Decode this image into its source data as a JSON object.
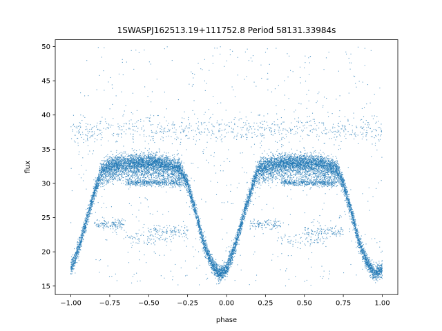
{
  "chart_data": {
    "type": "scatter",
    "title": "1SWASPJ162513.19+111752.8 Period 58131.33984s",
    "xlabel": "phase",
    "ylabel": "flux",
    "xlim": [
      -1.1,
      1.1
    ],
    "ylim": [
      13.75,
      51.0
    ],
    "xticks": [
      -1.0,
      -0.75,
      -0.5,
      -0.25,
      0.0,
      0.25,
      0.5,
      0.75,
      1.0
    ],
    "xtick_labels": [
      "−1.00",
      "−0.75",
      "−0.50",
      "−0.25",
      "0.00",
      "0.25",
      "0.50",
      "0.75",
      "1.00"
    ],
    "yticks": [
      15,
      20,
      25,
      30,
      35,
      40,
      45,
      50
    ],
    "ytick_labels": [
      "15",
      "20",
      "25",
      "30",
      "35",
      "40",
      "45",
      "50"
    ],
    "grid": false,
    "marker_color": "#1f77b4",
    "series": [
      {
        "values": [
          {
            "x": -1.0,
            "y": 17.5
          },
          {
            "x": -0.95,
            "y": 20.5
          },
          {
            "x": -0.9,
            "y": 24.5
          },
          {
            "x": -0.85,
            "y": 28.5
          },
          {
            "x": -0.8,
            "y": 32.0
          },
          {
            "x": -0.75,
            "y": 32.5
          },
          {
            "x": -0.7,
            "y": 32.8
          },
          {
            "x": -0.6,
            "y": 33.0
          },
          {
            "x": -0.5,
            "y": 33.0
          },
          {
            "x": -0.4,
            "y": 32.8
          },
          {
            "x": -0.3,
            "y": 32.2
          },
          {
            "x": -0.25,
            "y": 30.0
          },
          {
            "x": -0.2,
            "y": 26.0
          },
          {
            "x": -0.15,
            "y": 21.5
          },
          {
            "x": -0.1,
            "y": 18.5
          },
          {
            "x": -0.05,
            "y": 16.8
          },
          {
            "x": 0.0,
            "y": 17.5
          },
          {
            "x": 0.05,
            "y": 20.5
          },
          {
            "x": 0.1,
            "y": 24.5
          },
          {
            "x": 0.15,
            "y": 28.5
          },
          {
            "x": 0.2,
            "y": 32.0
          },
          {
            "x": 0.25,
            "y": 32.5
          },
          {
            "x": 0.3,
            "y": 32.8
          },
          {
            "x": 0.4,
            "y": 33.0
          },
          {
            "x": 0.5,
            "y": 33.0
          },
          {
            "x": 0.6,
            "y": 32.8
          },
          {
            "x": 0.7,
            "y": 32.2
          },
          {
            "x": 0.75,
            "y": 30.0
          },
          {
            "x": 0.8,
            "y": 26.0
          },
          {
            "x": 0.85,
            "y": 21.5
          },
          {
            "x": 0.9,
            "y": 18.5
          },
          {
            "x": 0.95,
            "y": 16.8
          },
          {
            "x": 1.0,
            "y": 17.5
          }
        ]
      }
    ]
  }
}
